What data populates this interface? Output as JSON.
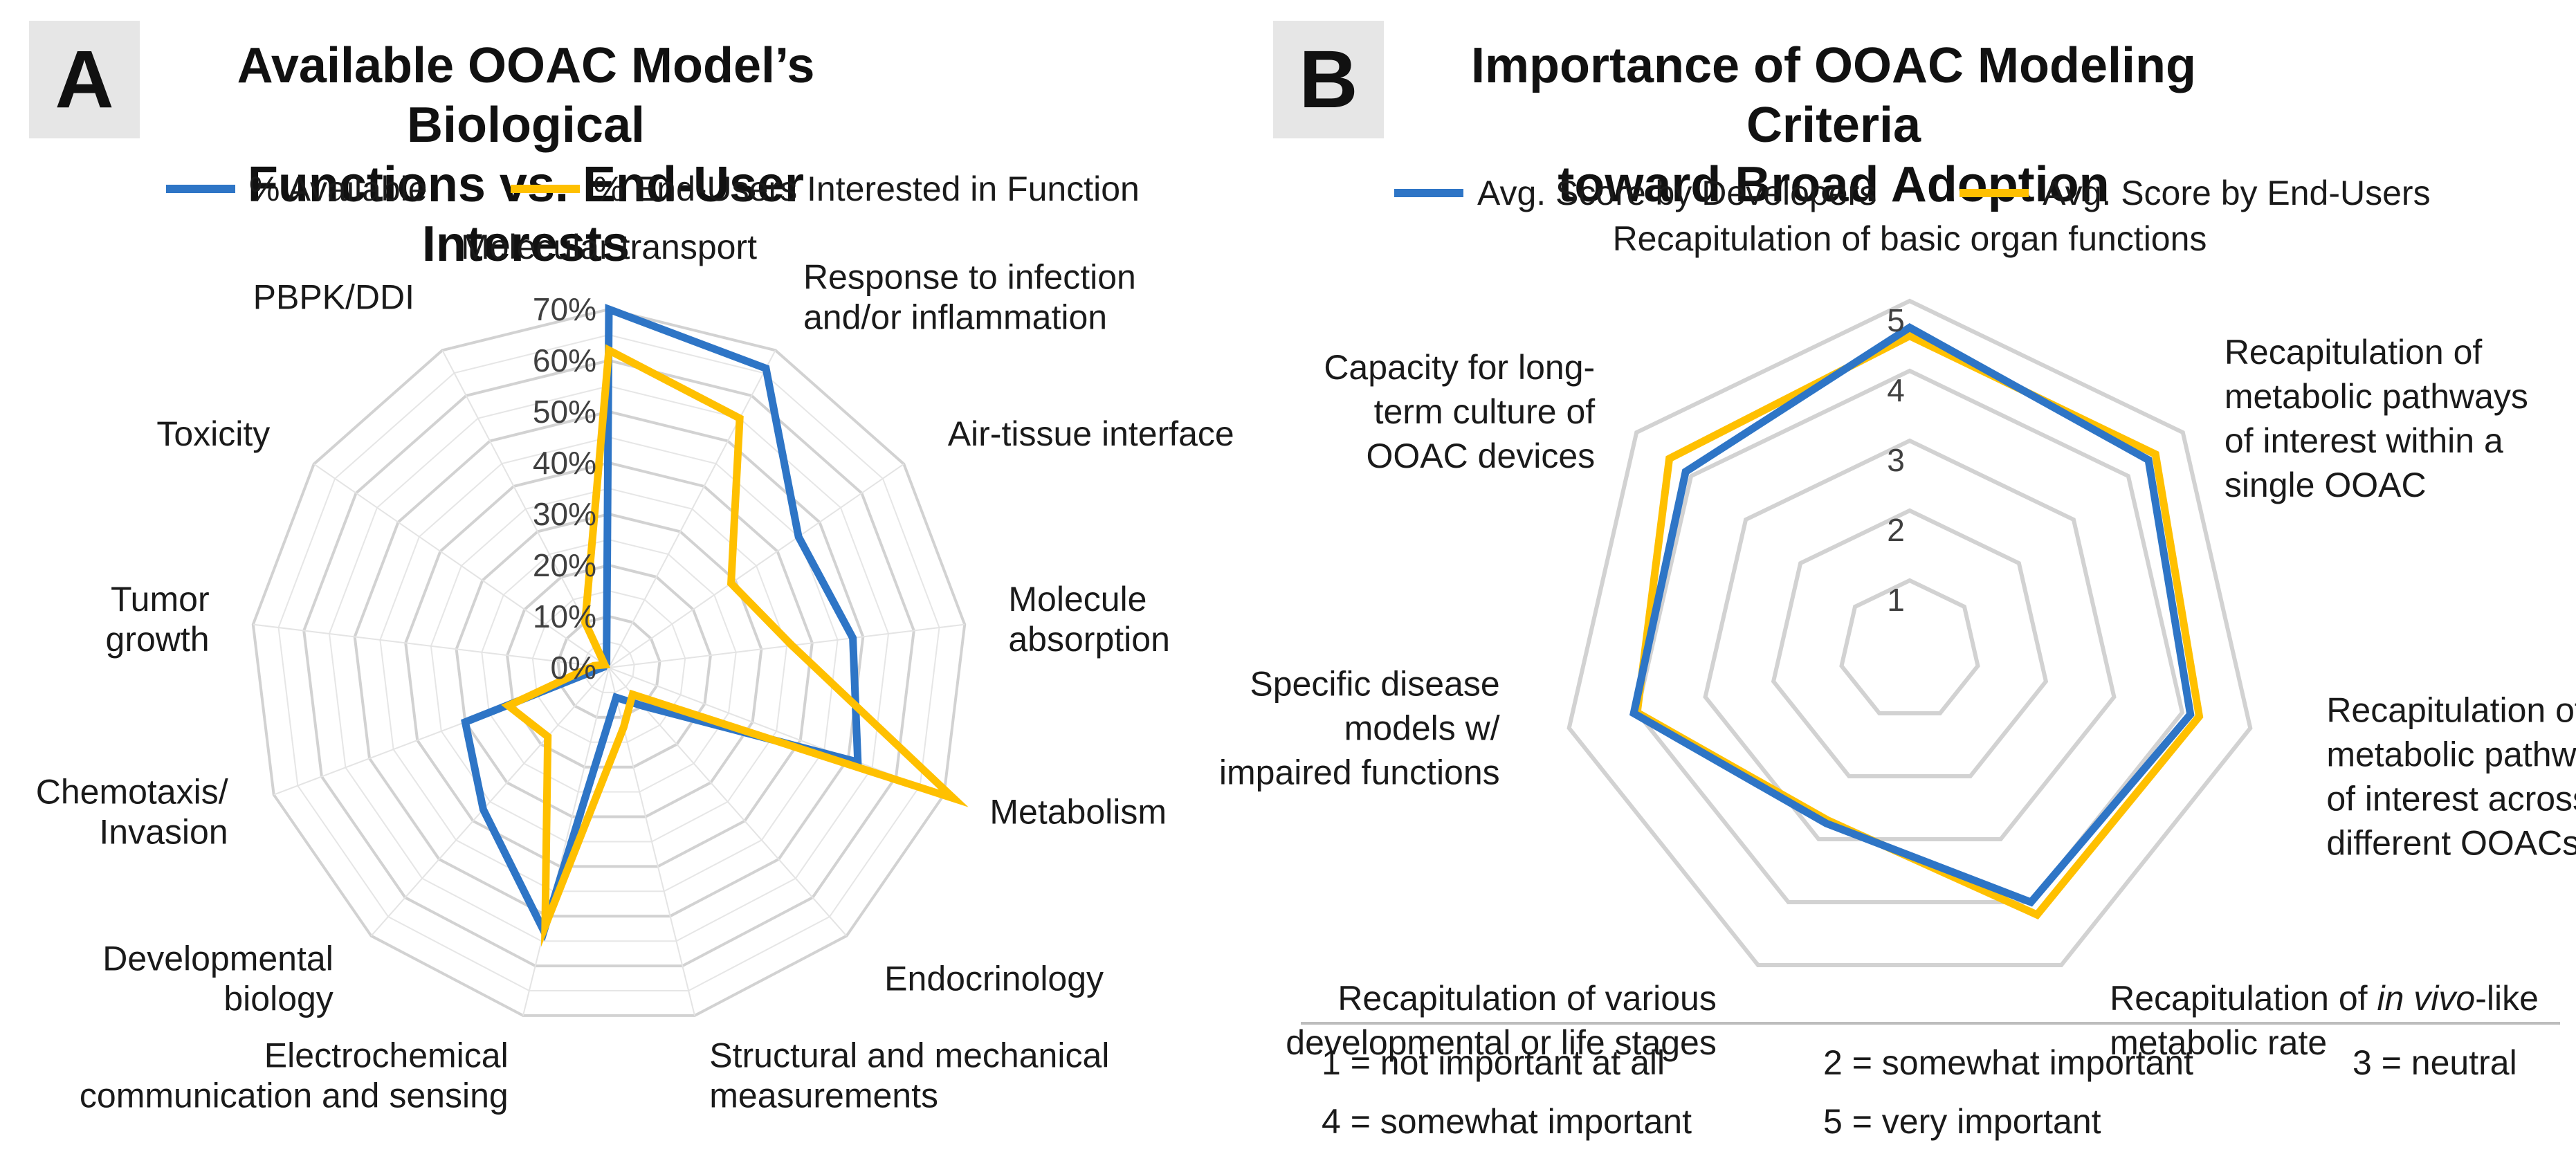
{
  "panels": {
    "a": {
      "letter": "A",
      "title_line1": "Available OOAC Model’s Biological",
      "title_line2": "Functions vs. End-User Interests"
    },
    "b": {
      "letter": "B",
      "title_line1": "Importance of OOAC Modeling Criteria",
      "title_line2": "toward Broad Adoption",
      "scale_notes": [
        "1 = not important at all",
        "2 = somewhat important",
        "3 = neutral",
        "4 = somewhat important",
        "5 = very important"
      ]
    }
  },
  "chart_data": [
    {
      "type": "radar",
      "title": "Available OOAC Model’s Biological Functions vs. End-User Interests",
      "categories": [
        "Molecular transport",
        "Response to infection and/or inflammation",
        "Air-tissue interface",
        "Molecule absorption",
        "Metabolism",
        "Endocrinology",
        "Structural and mechanical measurements",
        "Electrochemical communication and sensing",
        "Developmental biology",
        "Chemotaxis/ Invasion",
        "Tumor growth",
        "Toxicity",
        "PBPK/DDI"
      ],
      "category_lines": [
        [
          "Molecular transport"
        ],
        [
          "Response to infection",
          "and/or inflammation"
        ],
        [
          "Air-tissue interface"
        ],
        [
          "Molecule",
          "absorption"
        ],
        [
          "Metabolism"
        ],
        [
          "Endocrinology"
        ],
        [
          "Structural and mechanical",
          "measurements"
        ],
        [
          "Electrochemical",
          "communication and sensing"
        ],
        [
          "Developmental",
          "biology"
        ],
        [
          "Chemotaxis/",
          "Invasion"
        ],
        [
          "Tumor",
          "growth"
        ],
        [
          "Toxicity"
        ],
        [
          "PBPK/DDI"
        ]
      ],
      "series": [
        {
          "name": "% Available",
          "color": "#2e75c6",
          "values": [
            70,
            66,
            45,
            48,
            52,
            10,
            6,
            53,
            37,
            30,
            1,
            1,
            1
          ]
        },
        {
          "name": "% End-Users Interested in Function",
          "color": "#ffc000",
          "values": [
            62,
            55,
            29,
            36,
            72,
            7,
            12,
            52,
            18,
            21,
            3,
            1,
            10
          ]
        }
      ],
      "rlim": [
        0,
        70
      ],
      "grid_step": 5,
      "tick_labels": [
        "0%",
        "10%",
        "20%",
        "30%",
        "40%",
        "50%",
        "60%",
        "70%"
      ]
    },
    {
      "type": "radar",
      "title": "Importance of OOAC Modeling Criteria toward Broad Adoption",
      "categories": [
        "Recapitulation of basic organ functions",
        "Recapitulation of metabolic pathways of interest within a single OOAC",
        "Recapitulation of metabolic pathways of interest across different OOACs",
        "Recapitulation of in vivo-like metabolic rate",
        "Recapitulation of various developmental or life stages",
        "Specific disease models w/ impaired functions",
        "Capacity for long-term culture of OOAC devices"
      ],
      "category_lines": [
        [
          "Recapitulation of basic organ functions"
        ],
        [
          "Recapitulation of",
          "metabolic pathways",
          "of interest within a",
          "single OOAC"
        ],
        [
          "Recapitulation of",
          "metabolic pathways",
          "of interest across",
          "different OOACs"
        ],
        [
          "Recapitulation of in vivo-like",
          "metabolic rate"
        ],
        [
          "Recapitulation of various",
          "developmental or life stages"
        ],
        [
          "Specific disease",
          "models w/",
          "impaired functions"
        ],
        [
          "Capacity for long-",
          "term culture of",
          "OOAC devices"
        ]
      ],
      "series": [
        {
          "name": "Avg. Score by Developers",
          "color": "#2e75c6",
          "values": [
            4.62,
            4.37,
            4.12,
            4.0,
            2.75,
            4.05,
            4.1
          ]
        },
        {
          "name": "Avg. Score by End-Users",
          "color": "#ffc000",
          "values": [
            4.5,
            4.5,
            4.25,
            4.2,
            2.7,
            4.0,
            4.4
          ]
        }
      ],
      "rlim": [
        0,
        5
      ],
      "tick_labels": [
        "1",
        "2",
        "3",
        "4",
        "5"
      ]
    }
  ]
}
